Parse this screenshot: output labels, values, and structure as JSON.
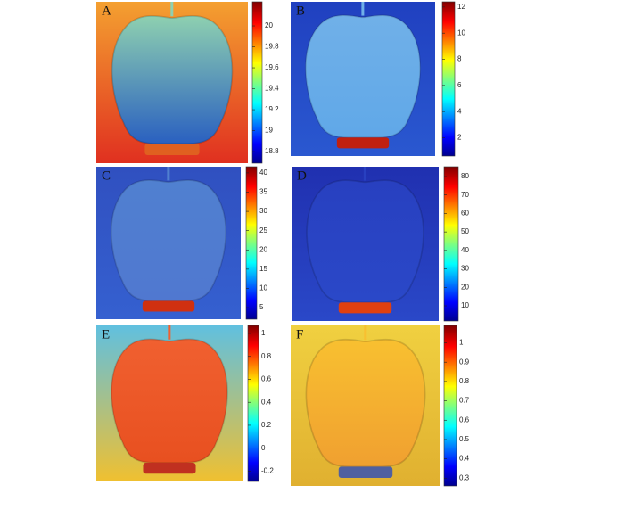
{
  "panels": [
    {
      "label": "A",
      "colorbar_range": [
        18.69,
        20.23
      ],
      "colorbar_ticks": [
        20,
        19.8,
        19.6,
        19.4,
        19.2,
        19,
        18.8
      ]
    },
    {
      "label": "B",
      "colorbar_range": [
        0.6,
        12.4
      ],
      "colorbar_ticks": [
        12,
        10,
        8,
        6,
        4,
        2
      ]
    },
    {
      "label": "C",
      "colorbar_range": [
        2,
        41.6
      ],
      "colorbar_ticks": [
        40,
        35,
        30,
        25,
        20,
        15,
        10,
        5
      ]
    },
    {
      "label": "D",
      "colorbar_range": [
        1.8,
        85.3
      ],
      "colorbar_ticks": [
        80,
        70,
        60,
        50,
        40,
        30,
        20,
        10
      ]
    },
    {
      "label": "E",
      "colorbar_range": [
        -0.29,
        1.07
      ],
      "colorbar_ticks": [
        1,
        0.8,
        0.6,
        0.4,
        0.2,
        0,
        -0.2
      ]
    },
    {
      "label": "F",
      "colorbar_range": [
        0.26,
        1.09
      ],
      "colorbar_ticks": [
        1,
        0.9,
        0.8,
        0.7,
        0.6,
        0.5,
        0.4,
        0.3
      ]
    }
  ]
}
